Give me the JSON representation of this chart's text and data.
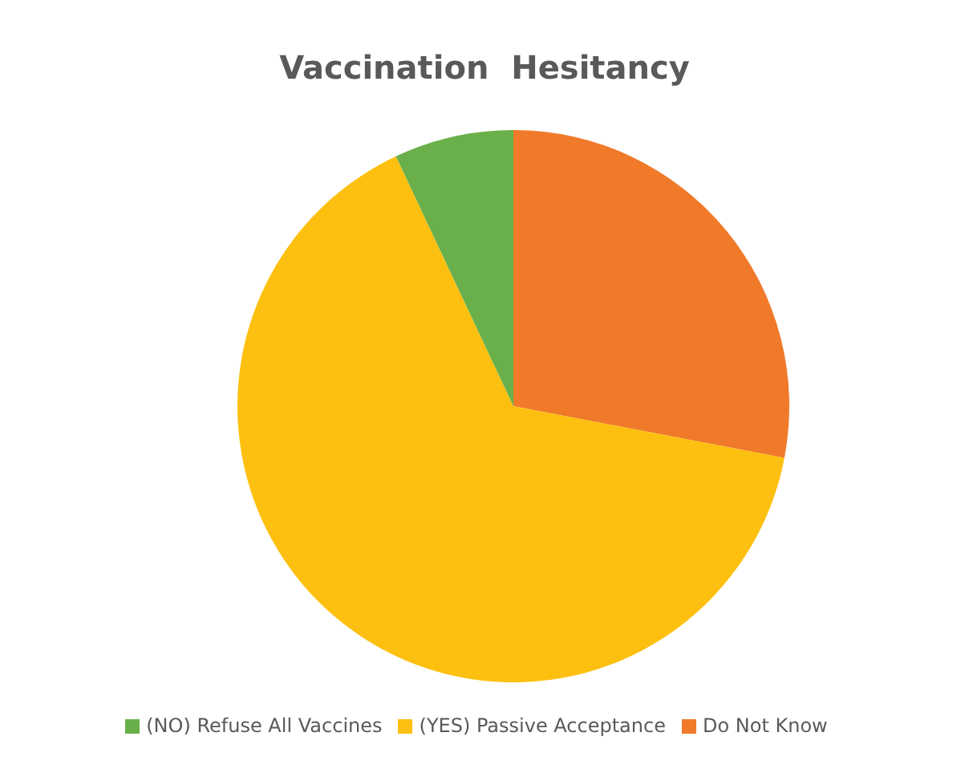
{
  "chart_data": {
    "type": "pie",
    "title": "Vaccination  Hesitancy",
    "categories": [
      "Do Not Know",
      "(YES) Passive Acceptance",
      "(NO) Refuse All Vaccines"
    ],
    "values": [
      28,
      65,
      7
    ],
    "colors": [
      "#f07a2a",
      "#fdc010",
      "#6ab04a"
    ],
    "legend": "bottom"
  }
}
